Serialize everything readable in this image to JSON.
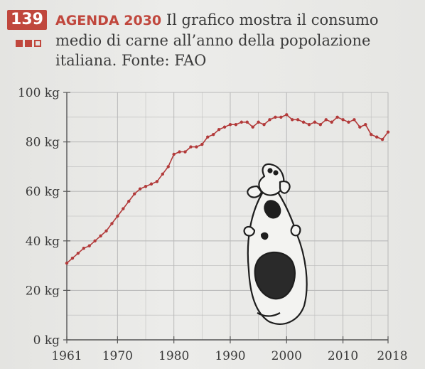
{
  "exercise": {
    "number": "139",
    "tag": "AGENDA 2030",
    "text": "Il grafico mostra il consumo medio di carne all’anno della popolazione italiana. Fonte: FAO",
    "difficulty": {
      "filled": 2,
      "total": 3
    }
  },
  "colors": {
    "accent": "#c0473d",
    "line": "#b23a3a",
    "grid": "#b9b9b9",
    "axis": "#555555"
  },
  "chart_data": {
    "type": "line",
    "title": "",
    "xlabel": "",
    "ylabel": "",
    "xlim": [
      1961,
      2018
    ],
    "ylim": [
      0,
      100
    ],
    "grid": true,
    "x_ticks": [
      {
        "value": 1961,
        "label": "1961"
      },
      {
        "value": 1970,
        "label": "1970"
      },
      {
        "value": 1980,
        "label": "1980"
      },
      {
        "value": 1990,
        "label": "1990"
      },
      {
        "value": 2000,
        "label": "2000"
      },
      {
        "value": 2010,
        "label": "2010"
      },
      {
        "value": 2018,
        "label": "2018"
      }
    ],
    "y_ticks": [
      {
        "value": 0,
        "label": "0 kg"
      },
      {
        "value": 20,
        "label": "20 kg"
      },
      {
        "value": 40,
        "label": "40 kg"
      },
      {
        "value": 60,
        "label": "60 kg"
      },
      {
        "value": 80,
        "label": "80 kg"
      },
      {
        "value": 100,
        "label": "100 kg"
      }
    ],
    "series": [
      {
        "x": [
          1961,
          1962,
          1963,
          1964,
          1965,
          1966,
          1967,
          1968,
          1969,
          1970,
          1971,
          1972,
          1973,
          1974,
          1975,
          1976,
          1977,
          1978,
          1979,
          1980,
          1981,
          1982,
          1983,
          1984,
          1985,
          1986,
          1987,
          1988,
          1989,
          1990,
          1991,
          1992,
          1993,
          1994,
          1995,
          1996,
          1997,
          1998,
          1999,
          2000,
          2001,
          2002,
          2003,
          2004,
          2005,
          2006,
          2007,
          2008,
          2009,
          2010,
          2011,
          2012,
          2013,
          2014,
          2015,
          2016,
          2017,
          2018
        ],
        "values": [
          31,
          33,
          35,
          37,
          38,
          40,
          42,
          44,
          47,
          50,
          53,
          56,
          59,
          61,
          62,
          63,
          64,
          67,
          70,
          75,
          76,
          76,
          78,
          78,
          79,
          82,
          83,
          85,
          86,
          87,
          87,
          88,
          88,
          86,
          88,
          87,
          89,
          90,
          90,
          91,
          89,
          89,
          88,
          87,
          88,
          87,
          89,
          88,
          90,
          89,
          88,
          89,
          86,
          87,
          83,
          82,
          81,
          84
        ]
      }
    ]
  },
  "illustration": {
    "name": "cow-illustration"
  }
}
